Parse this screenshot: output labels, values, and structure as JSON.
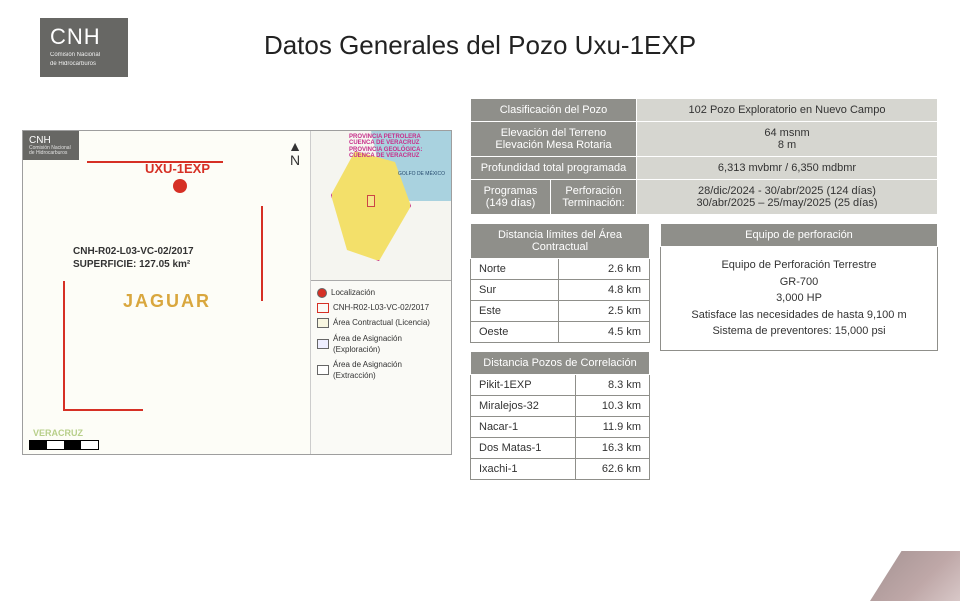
{
  "logo": {
    "main": "CNH",
    "sub1": "Comisión Nacional",
    "sub2": "de Hidrocarburos"
  },
  "title": "Datos Generales del Pozo Uxu-1EXP",
  "map": {
    "well_label": "UXU-1EXP",
    "contract": "CNH-R02-L03-VC-02/2017",
    "surface": "SUPERFICIE: 127.05 km²",
    "brand": "JAGUAR",
    "state": "VERACRUZ",
    "legend": {
      "loc": "Localización",
      "contract": "CNH-R02-L03-VC-02/2017",
      "lic": "Área Contractual (Licencia)",
      "exp": "Área de Asignación (Exploración)",
      "ext": "Área de Asignación (Extracción)"
    },
    "mini": {
      "t1": "PROVINCIA PETROLERA",
      "t2": "CUENCA DE VERACRUZ",
      "t3": "PROVINCIA GEOLÓGICA:",
      "t4": "CUENCA DE VERACRUZ",
      "golfo": "GOLFO DE MÉXICO"
    },
    "compass": "N"
  },
  "info": {
    "rows": [
      {
        "h": "Clasificación del Pozo",
        "v": "102 Pozo Exploratorio en Nuevo Campo"
      },
      {
        "h": "Elevación del Terreno\nElevación Mesa  Rotaria",
        "v": "64 msnm\n8 m"
      },
      {
        "h": "Profundidad total programada",
        "v": "6,313 mvbmr / 6,350 mdbmr"
      }
    ],
    "prog": {
      "h1": "Programas (149 días)",
      "h2a": "Perforación",
      "h2b": "Terminación:",
      "v1": "28/dic/2024 - 30/abr/2025 (124 días)",
      "v2": "30/abr/2025 – 25/may/2025 (25 días)"
    }
  },
  "dist_area": {
    "title": "Distancia límites del Área Contractual",
    "rows": [
      [
        "Norte",
        "2.6 km"
      ],
      [
        "Sur",
        "4.8 km"
      ],
      [
        "Este",
        "2.5 km"
      ],
      [
        "Oeste",
        "4.5 km"
      ]
    ]
  },
  "dist_corr": {
    "title": "Distancia Pozos de Correlación",
    "rows": [
      [
        "Pikit-1EXP",
        "8.3  km"
      ],
      [
        "Miralejos-32",
        "10.3 km"
      ],
      [
        "Nacar-1",
        "11.9 km"
      ],
      [
        "Dos Matas-1",
        "16.3 km"
      ],
      [
        "Ixachi-1",
        "62.6 km"
      ]
    ]
  },
  "equipo": {
    "title": "Equipo de perforación",
    "l1": "Equipo de Perforación Terrestre",
    "l2": "GR-700",
    "l3": "3,000 HP",
    "l4": "Satisface las necesidades de hasta 9,100 m",
    "l5": "Sistema de preventores: 15,000 psi"
  }
}
